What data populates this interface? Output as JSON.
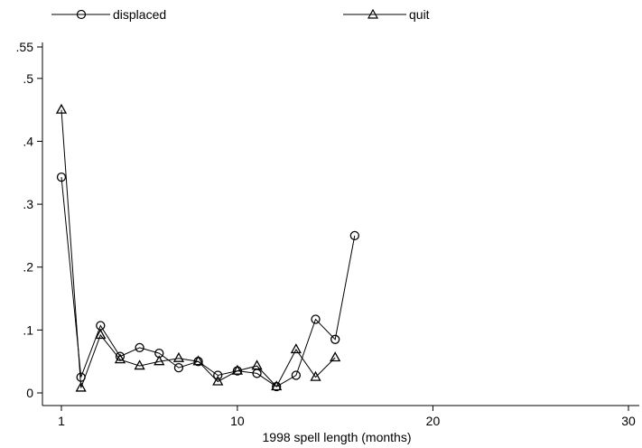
{
  "chart_data": {
    "type": "line",
    "xlabel": "1998 spell length (months)",
    "ylabel": "",
    "xlim": [
      1,
      30
    ],
    "ylim": [
      0,
      0.55
    ],
    "x_ticks": [
      1,
      10,
      20,
      30
    ],
    "x_tick_labels": [
      "1",
      "10",
      "20",
      "30"
    ],
    "y_ticks": [
      0,
      0.1,
      0.2,
      0.3,
      0.4,
      0.5,
      0.55
    ],
    "y_tick_labels": [
      "0",
      ".1",
      ".2",
      ".3",
      ".4",
      ".5",
      ".55"
    ],
    "legend_position": "top",
    "grid": false,
    "series": [
      {
        "name": "displaced",
        "marker": "circle",
        "x": [
          1,
          2,
          3,
          4,
          5,
          6,
          7,
          8,
          9,
          10,
          11,
          12,
          13,
          14,
          15,
          16
        ],
        "y": [
          0.343,
          0.025,
          0.107,
          0.058,
          0.072,
          0.063,
          0.04,
          0.05,
          0.028,
          0.035,
          0.031,
          0.01,
          0.028,
          0.117,
          0.085,
          0.25
        ]
      },
      {
        "name": "quit",
        "marker": "triangle",
        "x": [
          1,
          2,
          3,
          4,
          5,
          6,
          7,
          8,
          9,
          10,
          11,
          12,
          13,
          14,
          15
        ],
        "y": [
          0.45,
          0.008,
          0.092,
          0.053,
          0.043,
          0.05,
          0.055,
          0.05,
          0.018,
          0.035,
          0.043,
          0.01,
          0.069,
          0.025,
          0.056
        ]
      }
    ]
  }
}
